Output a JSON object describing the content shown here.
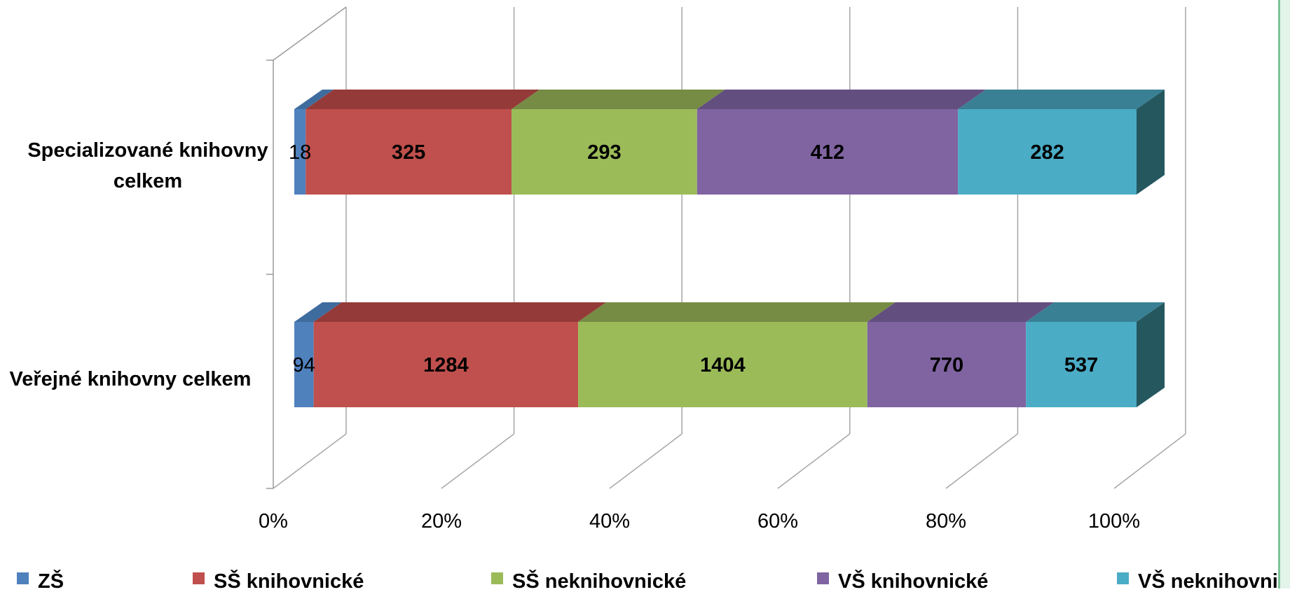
{
  "chart_data": {
    "type": "bar",
    "orientation": "horizontal",
    "stacked": "percent",
    "style": "3d",
    "categories": [
      "Specializované knihovny celkem",
      "Veřejné knihovny celkem"
    ],
    "category_lines": [
      [
        "Specializované knihovny",
        "celkem"
      ],
      [
        "Veřejné knihovny celkem"
      ]
    ],
    "series": [
      {
        "name": "ZŠ",
        "values": [
          18,
          94
        ],
        "color": "#4f81bd",
        "top": "#3f6c9e",
        "side": "#385d8a"
      },
      {
        "name": "SŠ knihovnické",
        "values": [
          325,
          1284
        ],
        "color": "#c0504d",
        "top": "#943a38",
        "side": "#8c3836"
      },
      {
        "name": "SŠ neknihovnické",
        "values": [
          293,
          1404
        ],
        "color": "#9bbb59",
        "top": "#768c44",
        "side": "#71893f"
      },
      {
        "name": "VŠ knihovnické",
        "values": [
          412,
          770
        ],
        "color": "#8064a2",
        "top": "#634e80",
        "side": "#5c4776"
      },
      {
        "name": "VŠ neknihovnické",
        "values": [
          282,
          537
        ],
        "color": "#4bacc6",
        "top": "#398094",
        "side": "#25575f"
      }
    ],
    "x_ticks": [
      "0%",
      "20%",
      "40%",
      "60%",
      "80%",
      "100%"
    ],
    "xlim": [
      0,
      100
    ],
    "grid": true,
    "legend_position": "bottom"
  }
}
